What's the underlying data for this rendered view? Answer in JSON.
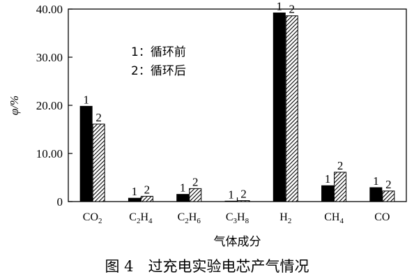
{
  "chart_data": {
    "type": "bar",
    "categories": [
      "CO2",
      "C2H4",
      "C2H6",
      "C3H8",
      "H2",
      "CH4",
      "CO"
    ],
    "category_labels": [
      [
        {
          "t": "CO"
        },
        {
          "t": "2",
          "sub": true
        }
      ],
      [
        {
          "t": "C"
        },
        {
          "t": "2",
          "sub": true
        },
        {
          "t": "H"
        },
        {
          "t": "4",
          "sub": true
        }
      ],
      [
        {
          "t": "C"
        },
        {
          "t": "2",
          "sub": true
        },
        {
          "t": "H"
        },
        {
          "t": "6",
          "sub": true
        }
      ],
      [
        {
          "t": "C"
        },
        {
          "t": "3",
          "sub": true
        },
        {
          "t": "H"
        },
        {
          "t": "8",
          "sub": true
        }
      ],
      [
        {
          "t": "H"
        },
        {
          "t": "2",
          "sub": true
        }
      ],
      [
        {
          "t": "CH"
        },
        {
          "t": "4",
          "sub": true
        }
      ],
      [
        {
          "t": "CO"
        }
      ]
    ],
    "series": [
      {
        "name": "1",
        "values": [
          19.8,
          0.7,
          1.5,
          0.1,
          39.2,
          3.3,
          2.9
        ],
        "fill": "solid",
        "color": "#000000"
      },
      {
        "name": "2",
        "values": [
          16.1,
          1.1,
          2.7,
          0.2,
          38.6,
          6.1,
          2.2
        ],
        "fill": "hatch",
        "color": "#000000"
      }
    ],
    "ylim": [
      0,
      40
    ],
    "yticks": [
      0,
      10,
      20,
      30,
      40
    ],
    "ytick_labels": [
      "0",
      "10.00",
      "20.00",
      "30.00",
      "40.00"
    ],
    "ylabel": "φ/%",
    "xlabel": "气体成分",
    "legend": {
      "placement": "top-left",
      "entries": [
        "1：循环前",
        "2：循环后"
      ]
    },
    "grid": false
  },
  "caption": "图 4　过充电实验电芯产气情况"
}
